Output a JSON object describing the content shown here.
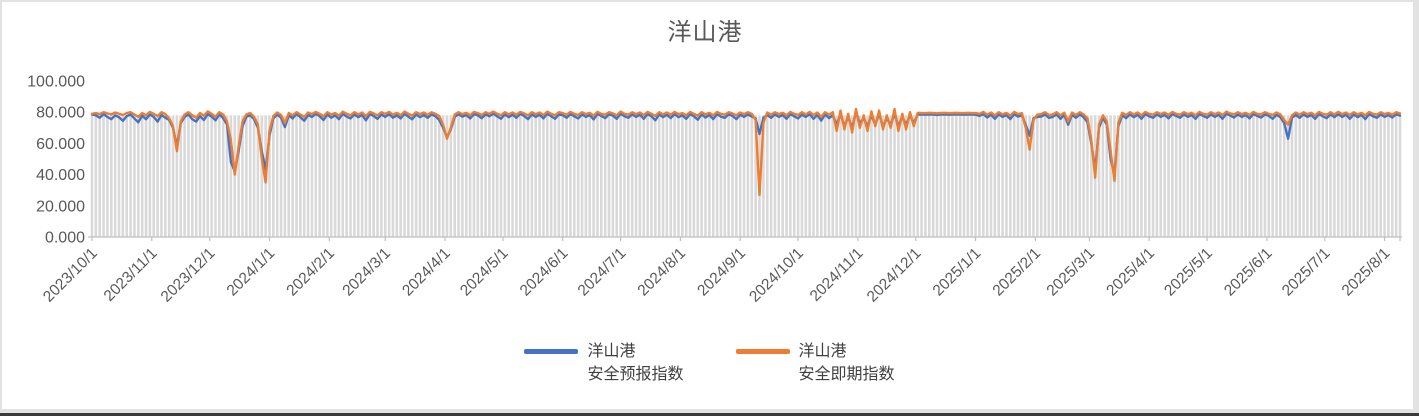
{
  "title": "洋山港",
  "colors": {
    "forecast_blue": "#4472C4",
    "spot_orange": "#ED7D31",
    "bar_gray": "#D9D9D9",
    "axis_line": "#BFBFBF",
    "label_gray": "#595959",
    "title_gray": "#595959"
  },
  "legend": {
    "items": [
      {
        "line1": "洋山港",
        "line2": "安全预报指数"
      },
      {
        "line1": "洋山港",
        "line2": "安全即期指数"
      }
    ]
  },
  "y_axis": {
    "tick_labels": [
      "0.000",
      "20.000",
      "40.000",
      "60.000",
      "80.000",
      "100.000"
    ],
    "tick_values": [
      0,
      20,
      40,
      60,
      80,
      100
    ]
  },
  "x_axis": {
    "ticks": [
      {
        "label": "2023/10/1",
        "day": 0
      },
      {
        "label": "2023/11/1",
        "day": 31
      },
      {
        "label": "2023/12/1",
        "day": 61
      },
      {
        "label": "2024/1/1",
        "day": 92
      },
      {
        "label": "2024/2/1",
        "day": 123
      },
      {
        "label": "2024/3/1",
        "day": 152
      },
      {
        "label": "2024/4/1",
        "day": 183
      },
      {
        "label": "2024/5/1",
        "day": 213
      },
      {
        "label": "2024/6/1",
        "day": 244
      },
      {
        "label": "2024/7/1",
        "day": 274
      },
      {
        "label": "2024/8/1",
        "day": 305
      },
      {
        "label": "2024/9/1",
        "day": 336
      },
      {
        "label": "2024/10/1",
        "day": 366
      },
      {
        "label": "2024/11/1",
        "day": 397
      },
      {
        "label": "2024/12/1",
        "day": 427
      },
      {
        "label": "2025/1/1",
        "day": 458
      },
      {
        "label": "2025/2/1",
        "day": 489
      },
      {
        "label": "2025/3/1",
        "day": 517
      },
      {
        "label": "2025/4/1",
        "day": 548
      },
      {
        "label": "2025/5/1",
        "day": 578
      },
      {
        "label": "2025/6/1",
        "day": 609
      },
      {
        "label": "2025/7/1",
        "day": 639
      },
      {
        "label": "2025/8/1",
        "day": 670
      }
    ]
  },
  "chart_data": {
    "type": "line",
    "title": "洋山港",
    "xlabel": "",
    "ylabel": "",
    "ylim": [
      0,
      100
    ],
    "grid": false,
    "legend_position": "bottom",
    "x_start_label": "2023/10/1",
    "x_end_label": "2025/8/1",
    "interval_days": 2,
    "background_bars": {
      "type": "bar",
      "color": "#D9D9D9",
      "constant_value": 78
    },
    "series": [
      {
        "name": "洋山港安全预报指数",
        "type": "line",
        "color": "#4472C4",
        "values": [
          78.5,
          78,
          76.5,
          78.8,
          77,
          75.5,
          78,
          76.8,
          74.5,
          77.5,
          78.5,
          76,
          73.5,
          77.8,
          75.5,
          78.5,
          77,
          74,
          78.2,
          76.5,
          75,
          70,
          58,
          73,
          77,
          78.5,
          75.5,
          74,
          77.5,
          75,
          78.8,
          77.2,
          74.8,
          78.5,
          76.2,
          72,
          48,
          42,
          55,
          71,
          77,
          78,
          75.5,
          70,
          55,
          43,
          65,
          76,
          78.5,
          76.5,
          70.5,
          78,
          76,
          78.8,
          76.8,
          74.5,
          78.2,
          77,
          79,
          77.5,
          75,
          78.5,
          76.5,
          78,
          75.5,
          79,
          77.2,
          76,
          78.6,
          76.8,
          78.2,
          74.8,
          78.8,
          77.5,
          75.8,
          78.5,
          77,
          78.8,
          76.5,
          78,
          76,
          79,
          77.2,
          75.5,
          78.5,
          76.8,
          78.2,
          76.4,
          78.6,
          77.4,
          75,
          70,
          64,
          69,
          77,
          78.8,
          77.2,
          78.2,
          76,
          78.8,
          78,
          76.2,
          78.6,
          77.4,
          79,
          77.4,
          75.8,
          78.6,
          76.8,
          78.4,
          76.4,
          79,
          77.6,
          75.6,
          78.6,
          77,
          78.4,
          76,
          79,
          77.4,
          75.8,
          78.6,
          78,
          76.4,
          78.8,
          77.4,
          76,
          78.6,
          77,
          78.2,
          75.4,
          78.8,
          77.6,
          76.2,
          78.6,
          77.8,
          75.8,
          79,
          77.4,
          76.4,
          78.6,
          77,
          78.4,
          75.8,
          78.8,
          77.4,
          74.8,
          78.6,
          76.8,
          78.4,
          76.2,
          78.8,
          76.8,
          78,
          75.8,
          78.8,
          77.4,
          75.2,
          78.6,
          76.6,
          78.2,
          75.6,
          78.8,
          77.2,
          76.4,
          78.6,
          77.6,
          75.6,
          78.4,
          77,
          78.6,
          77.2,
          76,
          66,
          76.5,
          78.2,
          76.4,
          78.6,
          77,
          78.2,
          75.8,
          78.8,
          77.4,
          76,
          78.4,
          77,
          78.8,
          75.8,
          78.2,
          74.6,
          78.6,
          76.2,
          78,
          72,
          79,
          71,
          77,
          70,
          80,
          73,
          76,
          71,
          78,
          72,
          79,
          71,
          76,
          72,
          79,
          71,
          77,
          72,
          78,
          73,
          78.6,
          78.5,
          78.4,
          78.6,
          78.5,
          78.3,
          78.5,
          78.6,
          78.4,
          78.5,
          78.6,
          78.5,
          78.4,
          78.6,
          78.5,
          78.4,
          77.6,
          78.8,
          76.6,
          78.4,
          75.8,
          78.6,
          77,
          78.2,
          75.6,
          78.8,
          77.2,
          78,
          72,
          65,
          76,
          77,
          77.2,
          78.6,
          76.4,
          77,
          78.6,
          75.8,
          78.2,
          72,
          78.4,
          76.4,
          78.6,
          76.8,
          73.5,
          60,
          43,
          70,
          76.5,
          72,
          50,
          40,
          71,
          78,
          76.2,
          78.6,
          76.8,
          78.4,
          75.8,
          78.8,
          77.4,
          76.4,
          78.6,
          77,
          78.4,
          76,
          78.8,
          77.6,
          76.4,
          78.6,
          77,
          78.2,
          75.8,
          78.8,
          77.6,
          76.4,
          78.6,
          77,
          78.4,
          75.8,
          79,
          77.8,
          76.6,
          78.6,
          77,
          78.2,
          76,
          78.8,
          77.6,
          76.6,
          78.6,
          77.6,
          75.8,
          78.4,
          76.8,
          73,
          63,
          76.5,
          78.2,
          76.4,
          78.6,
          77,
          78.2,
          75.8,
          78.8,
          77.4,
          76.2,
          78.6,
          76.8,
          78.8,
          77,
          78.4,
          75.8,
          78.6,
          76.8,
          78.2,
          75.6,
          78.8,
          77.4,
          76.4,
          78.6,
          77,
          78.2,
          76.6,
          78.6,
          77.8
        ]
      },
      {
        "name": "洋山港安全即期指数",
        "type": "line",
        "color": "#ED7D31",
        "values": [
          79,
          79.5,
          78.8,
          80,
          79.2,
          78.5,
          79.8,
          79,
          78.2,
          79.5,
          80,
          78.5,
          77,
          79.5,
          78,
          80.2,
          79,
          77.5,
          80,
          78.8,
          76,
          71,
          55,
          74,
          78.5,
          80,
          78,
          76.5,
          79.5,
          77.8,
          80.5,
          79,
          77.2,
          80,
          78.5,
          74,
          62,
          40,
          58,
          74,
          78.5,
          79.5,
          77,
          72,
          50,
          35,
          68,
          77.5,
          79.8,
          78.2,
          73,
          79.5,
          78,
          80,
          78.5,
          77,
          79.8,
          78.8,
          80.2,
          79,
          77.5,
          80,
          78.5,
          79.5,
          77.8,
          80.3,
          79,
          78,
          80,
          78.6,
          79.8,
          77.5,
          80.2,
          79.2,
          78,
          80,
          79,
          80.2,
          78.4,
          79.6,
          78,
          80.4,
          79,
          77.8,
          80,
          78.8,
          79.8,
          78.2,
          80,
          79,
          77.5,
          72,
          63,
          70,
          78.5,
          80,
          78.8,
          79.6,
          78,
          80.2,
          79.4,
          78.2,
          80,
          79,
          80.4,
          79,
          78,
          80,
          78.6,
          79.8,
          78.4,
          80.2,
          79.2,
          78,
          80,
          78.8,
          79.8,
          78.2,
          80.4,
          79,
          78,
          80,
          79.4,
          78.4,
          80.2,
          79,
          78.2,
          80,
          78.8,
          79.6,
          77.8,
          80.2,
          79,
          78.4,
          80,
          79.2,
          78,
          80.4,
          79,
          78.4,
          80,
          78.8,
          79.8,
          78.2,
          80.2,
          79,
          77.6,
          80,
          78.6,
          79.8,
          78.4,
          80.2,
          78.8,
          79.4,
          78,
          80.2,
          79,
          77.8,
          80,
          78.6,
          79.6,
          78,
          80.2,
          79,
          78.4,
          80,
          79.2,
          78,
          79.8,
          78.8,
          80,
          79,
          75,
          27,
          73,
          79.8,
          78.4,
          80,
          78.8,
          79.6,
          78,
          80.2,
          79,
          78.2,
          80,
          78.6,
          80.2,
          78.2,
          79.8,
          77,
          80,
          78.4,
          80,
          68,
          81,
          69,
          79,
          67,
          82,
          70,
          78,
          68,
          80.5,
          71,
          81,
          69,
          78,
          70,
          82,
          68,
          79,
          69,
          80,
          71,
          79.6,
          79.5,
          79.4,
          79.6,
          79.5,
          79.3,
          79.5,
          79.6,
          79.4,
          79.5,
          79.6,
          79.5,
          79.4,
          79.6,
          79.5,
          79.4,
          79,
          80.2,
          78.4,
          79.8,
          78,
          80,
          78.6,
          79.6,
          77.8,
          80.2,
          78.8,
          79.4,
          70,
          56,
          75,
          78.4,
          78.8,
          80,
          78.2,
          78.6,
          80,
          78,
          79.6,
          74,
          79.8,
          78.2,
          80,
          78.6,
          76,
          62,
          38,
          72,
          78,
          74,
          55,
          36,
          73,
          79.6,
          78.2,
          80,
          78.6,
          79.8,
          78,
          80.2,
          79,
          78.4,
          80,
          78.8,
          79.8,
          78.2,
          80.2,
          79,
          78.4,
          80,
          78.8,
          79.6,
          78,
          80.2,
          79,
          78.4,
          80,
          78.8,
          79.8,
          78.2,
          80.4,
          79.2,
          78.6,
          80,
          78.8,
          79.6,
          78.2,
          80.2,
          79,
          78.6,
          80,
          79,
          78.2,
          79.8,
          78.6,
          75,
          72,
          78,
          79.8,
          78.4,
          80,
          78.8,
          79.6,
          78,
          80.2,
          79,
          78.4,
          80,
          78.6,
          80.2,
          78.8,
          79.8,
          78.2,
          80,
          78.6,
          79.6,
          78,
          80.2,
          79,
          78.4,
          80,
          78.8,
          79.6,
          78.4,
          80,
          79.2
        ]
      }
    ]
  }
}
